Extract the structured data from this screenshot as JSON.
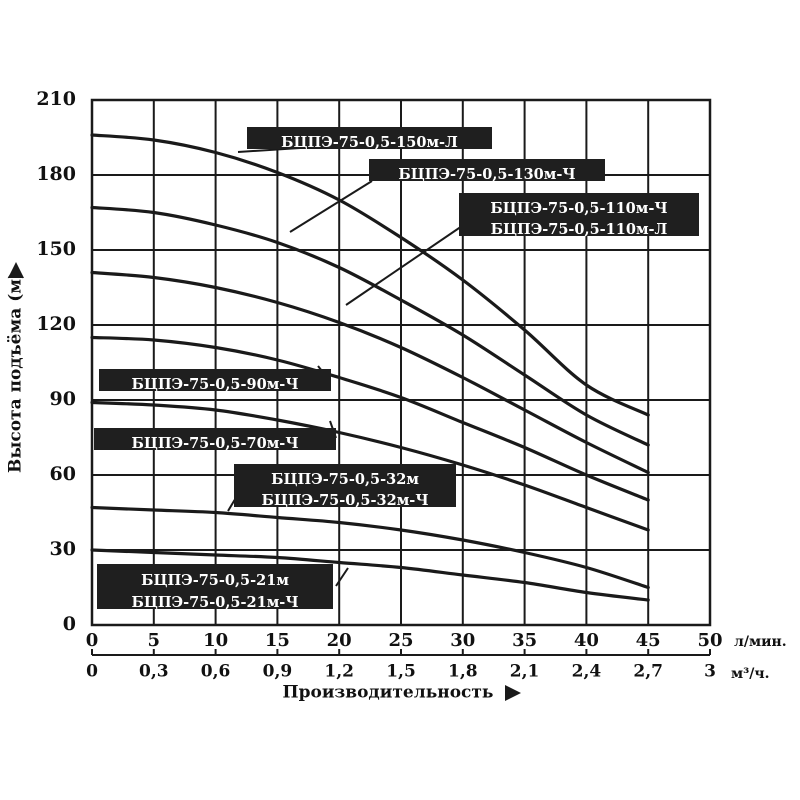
{
  "chart_data": {
    "type": "line",
    "ylabel": "Высота подъёма (м)",
    "xlabel": "Производительность",
    "x_units": [
      "л/мин.",
      "м³/ч."
    ],
    "ylim": [
      0,
      210
    ],
    "xlim": [
      0,
      50
    ],
    "y_ticks": [
      "0",
      "30",
      "60",
      "90",
      "120",
      "150",
      "180",
      "210"
    ],
    "x_ticks_lmin": [
      "0",
      "5",
      "10",
      "15",
      "20",
      "25",
      "30",
      "35",
      "40",
      "45",
      "50"
    ],
    "x_ticks_m3h": [
      "0",
      "0,3",
      "0,6",
      "0,9",
      "1,2",
      "1,5",
      "1,8",
      "2,1",
      "2,4",
      "2,7",
      "3"
    ],
    "grid": true,
    "x": [
      0,
      5,
      10,
      15,
      20,
      25,
      30,
      35,
      40,
      45
    ],
    "series": [
      {
        "values": [
          196,
          194,
          189,
          181,
          170,
          155,
          138,
          118,
          96,
          84
        ]
      },
      {
        "values": [
          167,
          165,
          160,
          153,
          143,
          130,
          116,
          100,
          84,
          72
        ]
      },
      {
        "values": [
          141,
          139,
          135,
          129,
          121,
          111,
          99,
          86,
          73,
          61
        ]
      },
      {
        "values": [
          115,
          114,
          111,
          106,
          99,
          91,
          81,
          71,
          60,
          50
        ]
      },
      {
        "values": [
          89,
          88,
          86,
          82,
          77,
          71,
          64,
          56,
          47,
          38
        ]
      },
      {
        "values": [
          47,
          46,
          45,
          43,
          41,
          38,
          34,
          29,
          23,
          15
        ]
      },
      {
        "values": [
          30,
          29,
          28,
          27,
          25,
          23,
          20,
          17,
          13,
          10
        ]
      }
    ],
    "annotations": [
      "БЦПЭ-75-0,5-150м-Л",
      "БЦПЭ-75-0,5-130м-Ч",
      "БЦПЭ-75-0,5-110м-Ч",
      "БЦПЭ-75-0,5-110м-Л",
      "БЦПЭ-75-0,5-90м-Ч",
      "БЦПЭ-75-0,5-70м-Ч",
      "БЦПЭ-75-0,5-32м",
      "БЦПЭ-75-0,5-32м-Ч",
      "БЦПЭ-75-0,5-21м",
      "БЦПЭ-75-0,5-21м-Ч"
    ],
    "colors": {
      "line": "#1a1a1a",
      "grid": "#1a1a1a",
      "label_bg": "#1f1f1f",
      "label_text": "#ffffff"
    }
  }
}
